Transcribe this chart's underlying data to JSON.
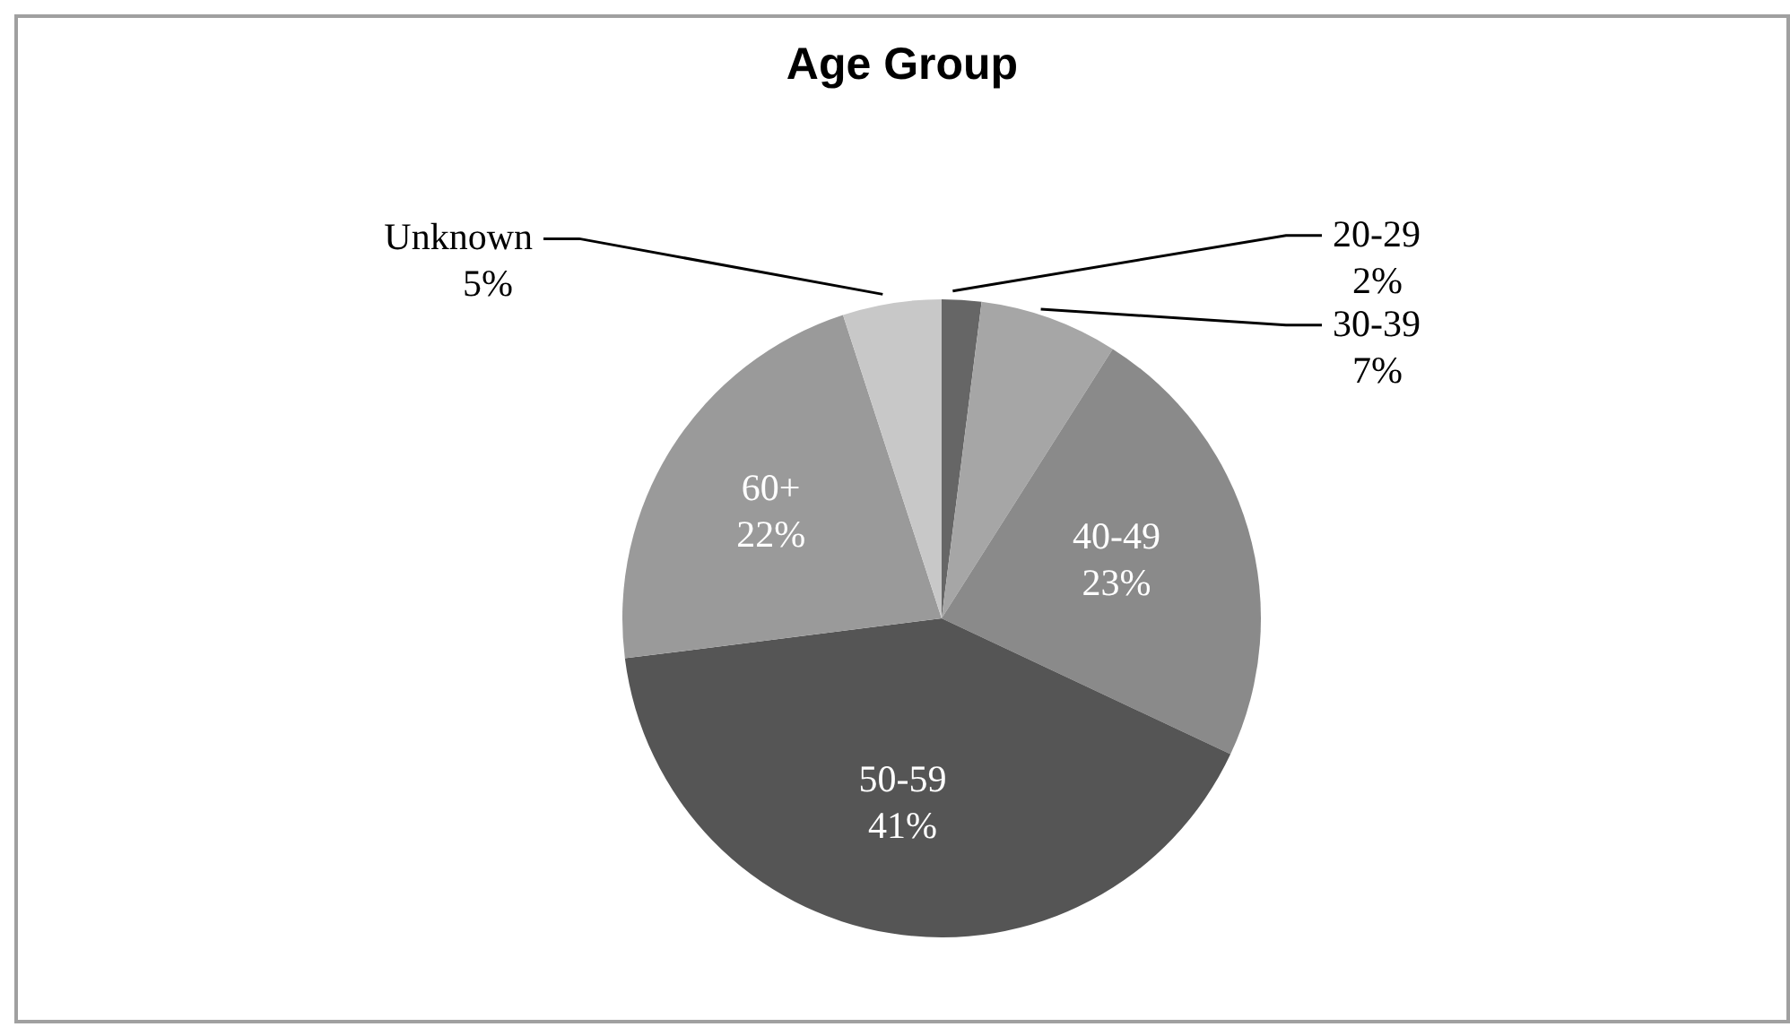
{
  "chart_data": {
    "type": "pie",
    "title": "Age Group",
    "categories": [
      "20-29",
      "30-39",
      "40-49",
      "50-59",
      "60+",
      "Unknown"
    ],
    "values": [
      2,
      7,
      23,
      41,
      22,
      5
    ],
    "value_labels": [
      "2%",
      "7%",
      "23%",
      "41%",
      "22%",
      "5%"
    ],
    "colors": [
      "#666666",
      "#a6a6a6",
      "#8a8a8a",
      "#555555",
      "#9a9a9a",
      "#c8c8c8"
    ]
  }
}
